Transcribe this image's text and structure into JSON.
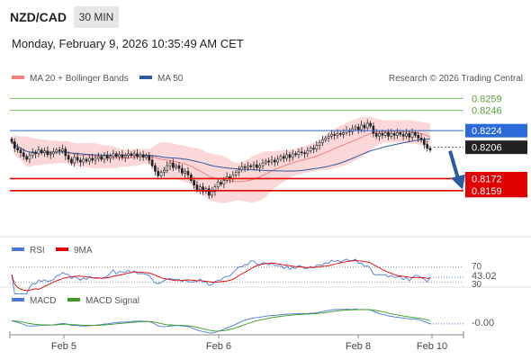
{
  "header": {
    "symbol": "NZD/CAD",
    "timeframe": "30 MIN",
    "datetime": "Monday, February 9, 2026 10:35:49 AM CET"
  },
  "chart_data": [
    {
      "type": "candlestick",
      "legend": [
        {
          "label": "MA 20 + Bollinger Bands",
          "color": "#f08080"
        },
        {
          "label": "MA 50",
          "color": "#2c5aa0"
        }
      ],
      "source": "Research © 2026 Trading Central",
      "x_ticks": [
        "Feb 5",
        "Feb 6",
        "Feb 8",
        "Feb 10"
      ],
      "ylim": [
        0.811,
        0.8272
      ],
      "levels": [
        {
          "value": 0.8259,
          "label": "0.8259",
          "color": "#7cc05b"
        },
        {
          "value": 0.8246,
          "label": "0.8246",
          "color": "#7cc05b"
        },
        {
          "value": 0.8224,
          "label": "0.8224",
          "color": "#2a6ad8"
        },
        {
          "value": 0.8206,
          "label": "0.8206",
          "color": "#222222"
        },
        {
          "value": 0.8172,
          "label": "0.8172",
          "color": "#e00000"
        },
        {
          "value": 0.8159,
          "label": "0.8159",
          "color": "#e00000"
        }
      ],
      "current_price": 0.8206,
      "closes": [
        0.8212,
        0.8205,
        0.8203,
        0.82,
        0.8196,
        0.8193,
        0.8197,
        0.82,
        0.8199,
        0.8203,
        0.82,
        0.8202,
        0.8198,
        0.8199,
        0.8201,
        0.8203,
        0.8202,
        0.8204,
        0.8197,
        0.8193,
        0.8189,
        0.8195,
        0.8192,
        0.819,
        0.8193,
        0.8191,
        0.8194,
        0.8192,
        0.8194,
        0.8196,
        0.8193,
        0.8197,
        0.8194,
        0.8196,
        0.8199,
        0.8196,
        0.8198,
        0.8195,
        0.8197,
        0.8199,
        0.8197,
        0.8199,
        0.8196,
        0.8198,
        0.8195,
        0.8197,
        0.8192,
        0.8186,
        0.818,
        0.8175,
        0.8179,
        0.8181,
        0.8186,
        0.8189,
        0.8184,
        0.8186,
        0.8183,
        0.8178,
        0.818,
        0.8176,
        0.817,
        0.8165,
        0.816,
        0.8163,
        0.8158,
        0.8161,
        0.8154,
        0.8158,
        0.8163,
        0.8168,
        0.8166,
        0.817,
        0.8174,
        0.8172,
        0.8176,
        0.8179,
        0.8182,
        0.8185,
        0.8184,
        0.8186,
        0.8185,
        0.8187,
        0.8184,
        0.8186,
        0.8189,
        0.8191,
        0.819,
        0.8192,
        0.819,
        0.8193,
        0.8196,
        0.8194,
        0.8198,
        0.8195,
        0.8199,
        0.8198,
        0.8201,
        0.82,
        0.8199,
        0.8202,
        0.8205,
        0.8204,
        0.8208,
        0.8211,
        0.8214,
        0.8216,
        0.8218,
        0.822,
        0.8219,
        0.8221,
        0.822,
        0.8222,
        0.8224,
        0.8223,
        0.8226,
        0.8228,
        0.8225,
        0.823,
        0.8227,
        0.8232,
        0.8229,
        0.8221,
        0.8218,
        0.8221,
        0.8219,
        0.8222,
        0.8218,
        0.8221,
        0.8219,
        0.8222,
        0.822,
        0.8218,
        0.8221,
        0.8217,
        0.8222,
        0.8219,
        0.8216,
        0.8214,
        0.8209,
        0.8205,
        0.8203
      ],
      "forecast_target": 0.8159
    },
    {
      "type": "line",
      "legend": [
        {
          "label": "RSI",
          "color": "#4a78d8"
        },
        {
          "label": "9MA",
          "color": "#e00000"
        }
      ],
      "levels": [
        "70",
        "43.02",
        "30"
      ],
      "rsi_last": 43.02
    },
    {
      "type": "line",
      "legend": [
        {
          "label": "MACD",
          "color": "#4a78d8"
        },
        {
          "label": "MACD Signal",
          "color": "#3a9a22"
        }
      ],
      "last_value": "-0.00"
    }
  ]
}
